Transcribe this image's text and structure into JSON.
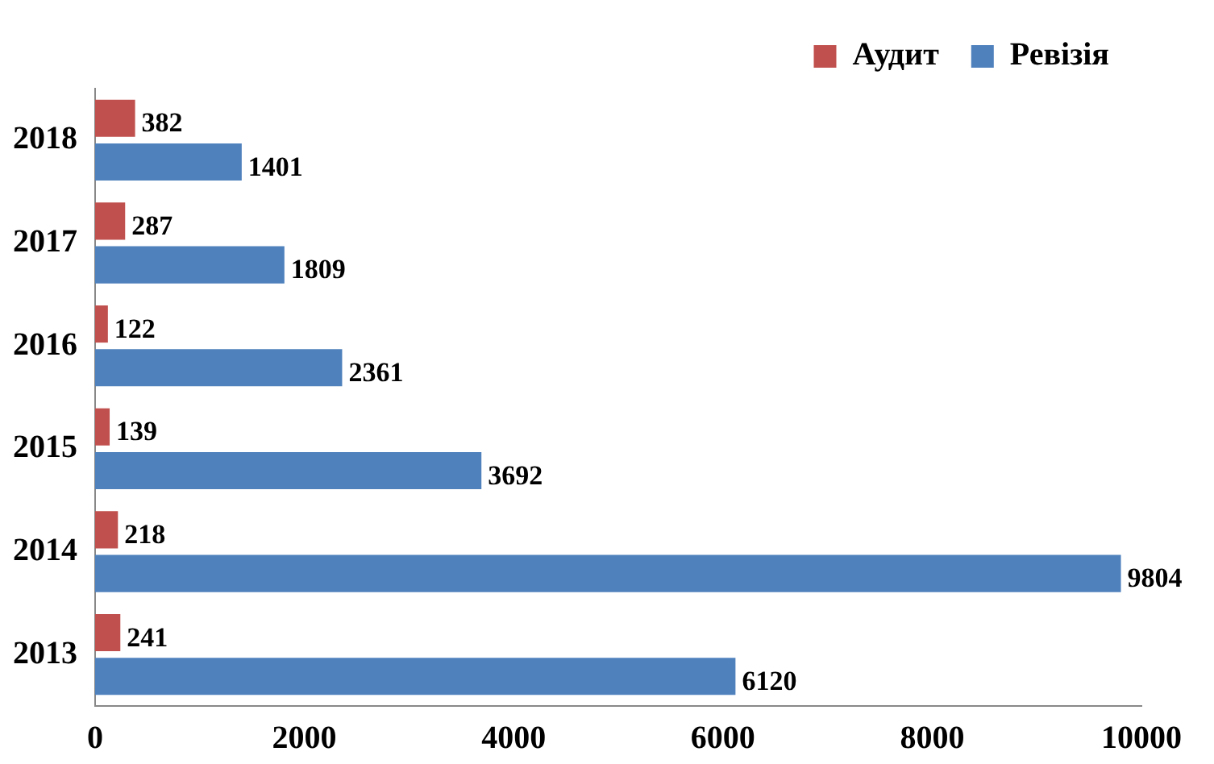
{
  "chart_data": {
    "type": "bar",
    "orientation": "horizontal",
    "categories": [
      "2018",
      "2017",
      "2016",
      "2015",
      "2014",
      "2013"
    ],
    "series": [
      {
        "name": "Аудит",
        "color": "#c0504d",
        "values": [
          382,
          287,
          122,
          139,
          218,
          241
        ]
      },
      {
        "name": "Ревізія",
        "color": "#4f81bd",
        "values": [
          1401,
          1809,
          2361,
          3692,
          9804,
          6120
        ]
      }
    ],
    "xlim": [
      0,
      10000
    ],
    "xticks": [
      0,
      2000,
      4000,
      6000,
      8000,
      10000
    ],
    "grid": false,
    "legend": "top right",
    "data_labels": true
  }
}
